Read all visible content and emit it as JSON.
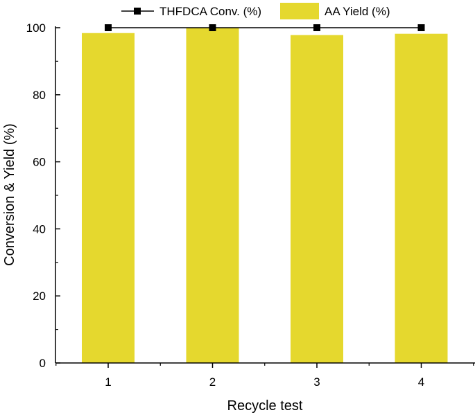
{
  "chart_data": {
    "type": "bar",
    "categories": [
      "1",
      "2",
      "3",
      "4"
    ],
    "xlabel": "Recycle test",
    "ylabel": "Conversion & Yield (%)",
    "ylim": [
      0,
      100
    ],
    "yticks": [
      0,
      20,
      40,
      60,
      80,
      100
    ],
    "grid": false,
    "legend_position": "top",
    "series": [
      {
        "name": "THFDCA Conv. (%)",
        "kind": "line-marker",
        "color": "#000000",
        "values": [
          100,
          100,
          100,
          100
        ]
      },
      {
        "name": "AA Yield (%)",
        "kind": "bar",
        "color": "#E5D82E",
        "values": [
          98.4,
          99.9,
          97.8,
          98.2
        ]
      }
    ]
  }
}
